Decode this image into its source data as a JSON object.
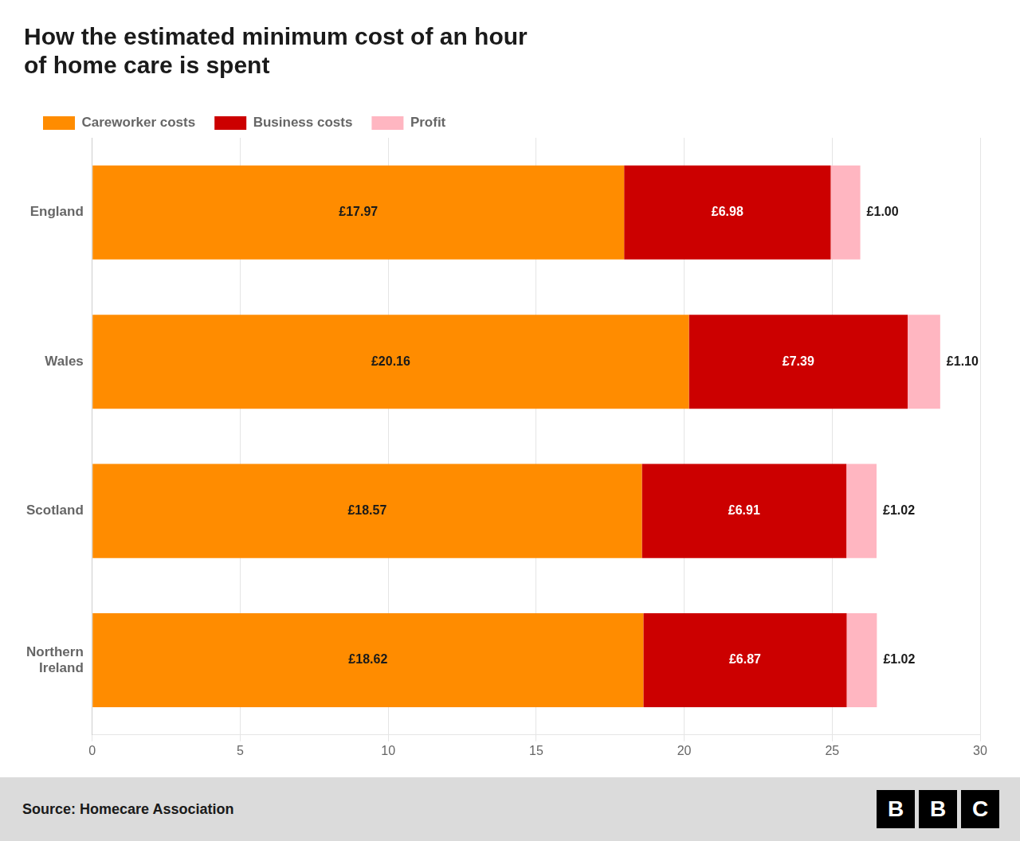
{
  "chart_data": {
    "type": "bar",
    "orientation": "horizontal",
    "stacked": true,
    "title": "How the estimated minimum cost of an hour\nof home care is spent",
    "categories": [
      "England",
      "Wales",
      "Scotland",
      "Northern\nIreland"
    ],
    "series": [
      {
        "name": "Careworker costs",
        "color": "#FF8C00",
        "values": [
          17.97,
          20.16,
          18.57,
          18.62
        ],
        "value_labels": [
          "£17.97",
          "£20.16",
          "£18.57",
          "£18.62"
        ]
      },
      {
        "name": "Business costs",
        "color": "#CC0000",
        "values": [
          6.98,
          7.39,
          6.91,
          6.87
        ],
        "value_labels": [
          "£6.98",
          "£7.39",
          "£6.91",
          "£6.87"
        ]
      },
      {
        "name": "Profit",
        "color": "#FFB6C1",
        "values": [
          1.0,
          1.1,
          1.02,
          1.02
        ],
        "value_labels": [
          "£1.00",
          "£1.10",
          "£1.02",
          "£1.02"
        ]
      }
    ],
    "xlim": [
      0,
      30
    ],
    "xticks": [
      0,
      5,
      10,
      15,
      20,
      25,
      30
    ],
    "grid": true,
    "legend": "top",
    "data_labels": true,
    "source": "Source: Homecare Association",
    "logo": "BBC"
  }
}
